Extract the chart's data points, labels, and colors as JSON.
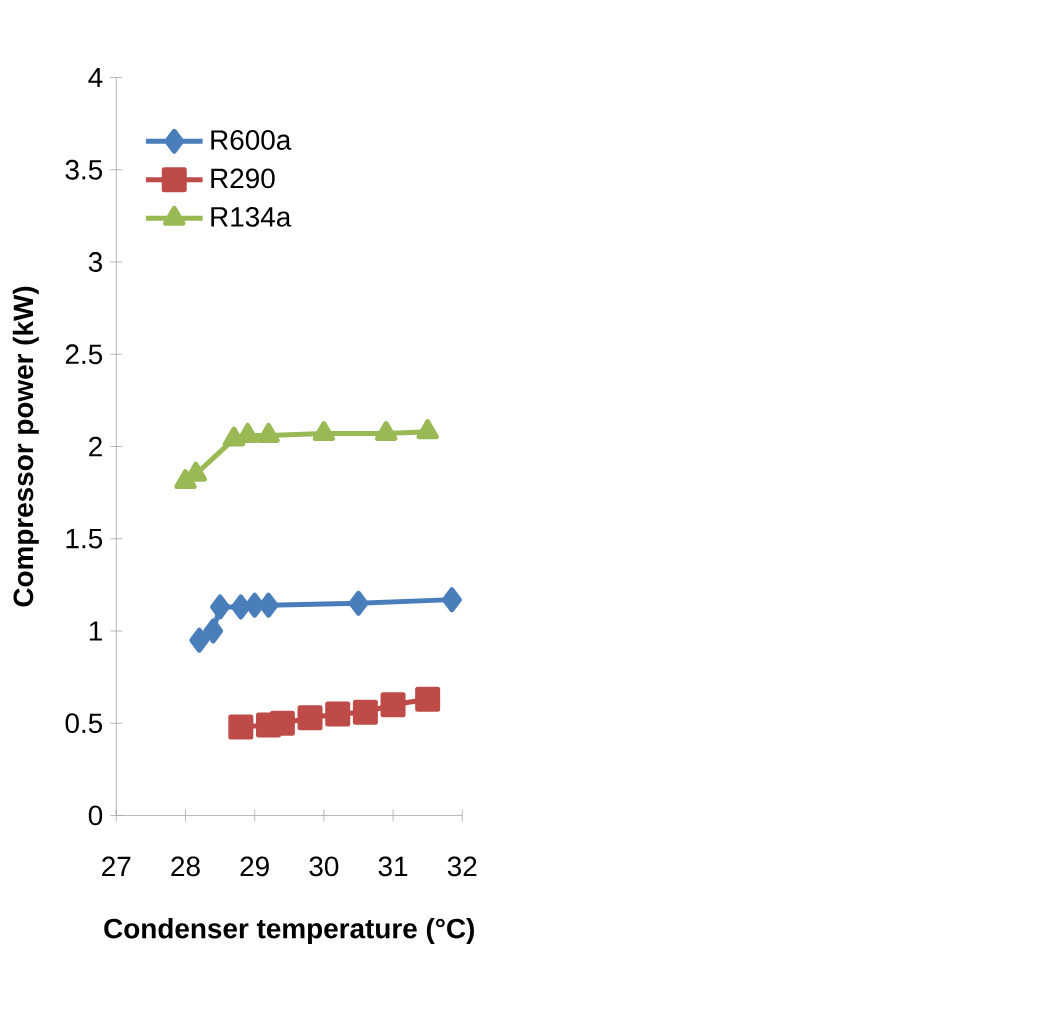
{
  "chart_data": {
    "type": "line",
    "xlabel": "Condenser temperature (°C)",
    "ylabel": "Compressor power (kW)",
    "xlim": [
      27,
      32
    ],
    "xticks": [
      27,
      28,
      29,
      30,
      31,
      32
    ],
    "ylim": [
      0,
      4
    ],
    "yticks": [
      0,
      0.5,
      1,
      1.5,
      2,
      2.5,
      3,
      3.5,
      4
    ],
    "legend": "top left",
    "grid": false,
    "series": [
      {
        "name": "R600a",
        "color": "#4a7ebb",
        "marker": "diamond",
        "x": [
          28.2,
          28.4,
          28.5,
          28.8,
          29.0,
          29.2,
          30.5,
          31.85
        ],
        "values": [
          0.95,
          1.0,
          1.13,
          1.13,
          1.14,
          1.14,
          1.15,
          1.17
        ]
      },
      {
        "name": "R290",
        "color": "#be4b48",
        "marker": "square",
        "x": [
          28.8,
          29.2,
          29.4,
          29.8,
          30.2,
          30.6,
          31.0,
          31.5
        ],
        "values": [
          0.48,
          0.49,
          0.5,
          0.53,
          0.55,
          0.56,
          0.6,
          0.63
        ]
      },
      {
        "name": "R134a",
        "color": "#98b954",
        "marker": "triangle",
        "x": [
          28.0,
          28.15,
          28.7,
          28.9,
          29.2,
          30.0,
          30.9,
          31.5
        ],
        "values": [
          1.81,
          1.85,
          2.04,
          2.06,
          2.06,
          2.07,
          2.07,
          2.08
        ]
      }
    ]
  }
}
